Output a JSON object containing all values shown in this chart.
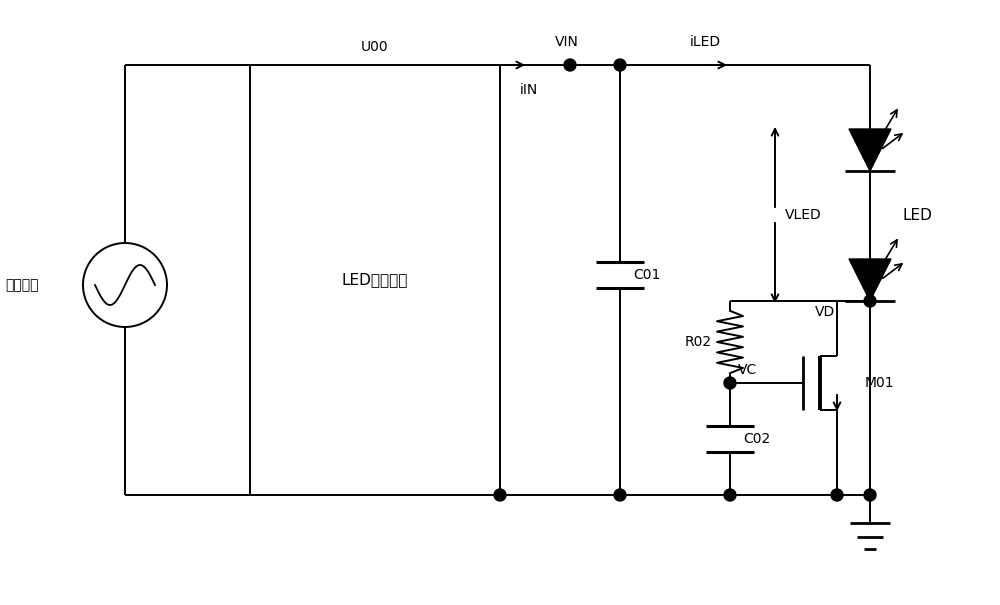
{
  "bg_color": "#ffffff",
  "line_color": "#000000",
  "labels": {
    "ac_input": "交流输入",
    "U00": "U00",
    "LED_driver": "LED驱动电路",
    "VIN": "VIN",
    "iIN": "iIN",
    "iLED": "iLED",
    "C01": "C01",
    "R02": "R02",
    "C02": "C02",
    "VLED": "VLED",
    "VD": "VD",
    "VC": "VC",
    "M01": "M01",
    "LED": "LED"
  },
  "figsize": [
    10.0,
    6.05
  ],
  "dpi": 100
}
